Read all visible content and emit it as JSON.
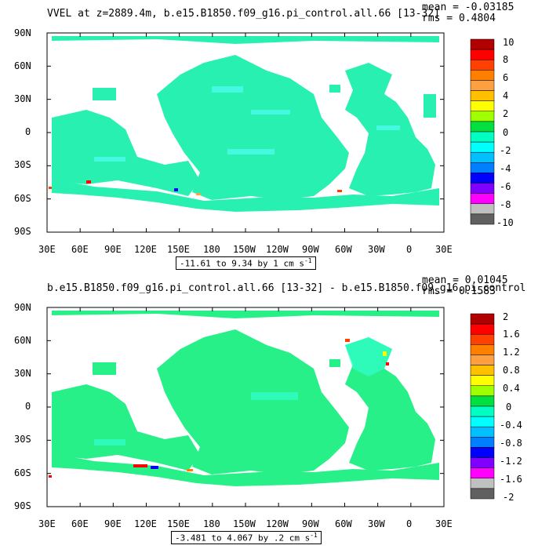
{
  "panels": [
    {
      "title": "VVEL at z=2889.4m, b.e15.B1850.f09_g16.pi_control.all.66 [13-32]",
      "mean": "mean = -0.03185",
      "rms": "rms = 0.4804",
      "range": "-11.61 to 9.34 by 1 cm s",
      "range_sup": "-1",
      "lat_labels": [
        "90N",
        "60N",
        "30N",
        "0",
        "30S",
        "60S",
        "90S"
      ],
      "lon_labels": [
        "30E",
        "60E",
        "90E",
        "120E",
        "150E",
        "180",
        "150W",
        "120W",
        "90W",
        "60W",
        "30W",
        "0",
        "30E"
      ],
      "colorbar_labels": [
        "10",
        "8",
        "6",
        "4",
        "2",
        "0",
        "-2",
        "-4",
        "-6",
        "-8",
        "-10"
      ]
    },
    {
      "title": "b.e15.B1850.f09_g16.pi_control.all.66 [13-32] - b.e15.B1850.f09_g16.pi_control",
      "mean": "mean = 0.01045",
      "rms": "rms = 0.1583",
      "range": "-3.481 to 4.067 by .2 cm s",
      "range_sup": "-1",
      "lat_labels": [
        "90N",
        "60N",
        "30N",
        "0",
        "30S",
        "60S",
        "90S"
      ],
      "lon_labels": [
        "30E",
        "60E",
        "90E",
        "120E",
        "150E",
        "180",
        "150W",
        "120W",
        "90W",
        "60W",
        "30W",
        "0",
        "30E"
      ],
      "colorbar_labels": [
        "2",
        "1.6",
        "1.2",
        "0.8",
        "0.4",
        "0",
        "-0.4",
        "-0.8",
        "-1.2",
        "-1.6",
        "-2"
      ]
    }
  ],
  "colorbar_colors": [
    "#b00000",
    "#ff0000",
    "#ff4000",
    "#ff8000",
    "#ffa040",
    "#ffc000",
    "#ffff00",
    "#a0ff00",
    "#00e040",
    "#00ffc0",
    "#00ffff",
    "#00c0ff",
    "#0080ff",
    "#0000ff",
    "#8000ff",
    "#ff00ff",
    "#c0c0c0",
    "#606060"
  ],
  "colors": {
    "ocean": "#20e8a8",
    "ocean_speckle": "#30ffff",
    "frame": "#000000"
  }
}
